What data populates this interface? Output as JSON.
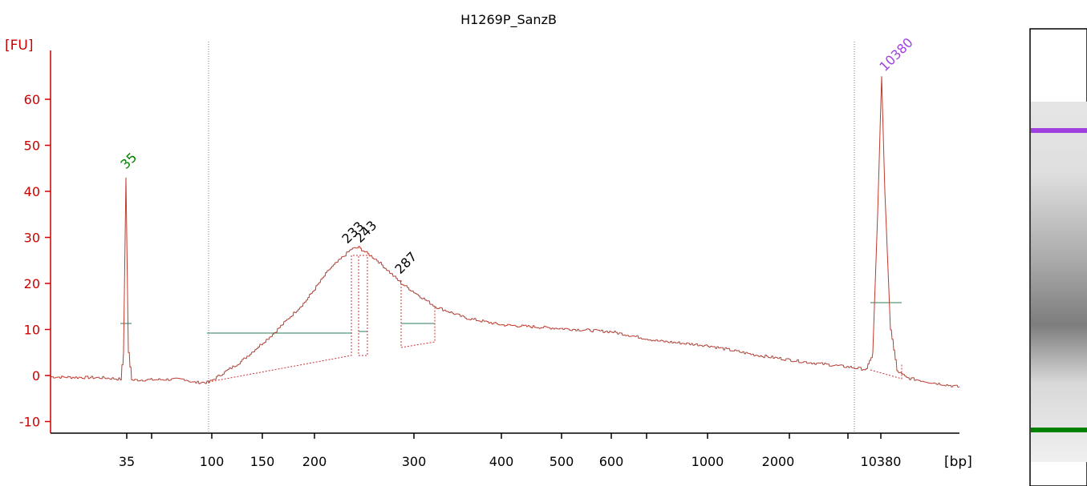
{
  "chart_data": {
    "type": "line",
    "title": "H1269P_SanzB",
    "ylabel": "[FU]",
    "xlabel": "[bp]",
    "ylim": [
      -12,
      70
    ],
    "y_ticks": [
      -10,
      0,
      10,
      20,
      30,
      40,
      50,
      60
    ],
    "x_tick_labels": [
      "35",
      "100",
      "150",
      "200",
      "300",
      "400",
      "500",
      "600",
      "1000",
      "2000",
      "10380"
    ],
    "markers": [
      {
        "label": "35",
        "value": 43,
        "color": "#008000"
      },
      {
        "label": "10380",
        "value": 65,
        "color": "#a040e0"
      }
    ],
    "peak_labels": [
      "233",
      "243",
      "287"
    ],
    "series": [
      {
        "color": "#c0392b",
        "points": [
          [
            "start",
            -0.3
          ],
          [
            "30",
            -0.5
          ],
          [
            "35",
            43
          ],
          [
            "35b",
            -0.8
          ],
          [
            "80",
            -0.8
          ],
          [
            "100",
            -1.5
          ],
          [
            "150",
            9
          ],
          [
            "200",
            20
          ],
          [
            "233",
            27.5
          ],
          [
            "243",
            27.8
          ],
          [
            "287",
            20
          ],
          [
            "320",
            15
          ],
          [
            "400",
            11
          ],
          [
            "500",
            10.5
          ],
          [
            "600",
            9.5
          ],
          [
            "1000",
            6.5
          ],
          [
            "2000",
            3
          ],
          [
            "8000",
            1.2
          ],
          [
            "10380",
            65
          ],
          [
            "11500",
            -0.5
          ],
          [
            "end",
            -2.5
          ]
        ]
      }
    ],
    "gel_bands": [
      {
        "name": "upper marker",
        "color": "#a040e0"
      },
      {
        "name": "lower marker",
        "color": "#008000"
      }
    ]
  }
}
